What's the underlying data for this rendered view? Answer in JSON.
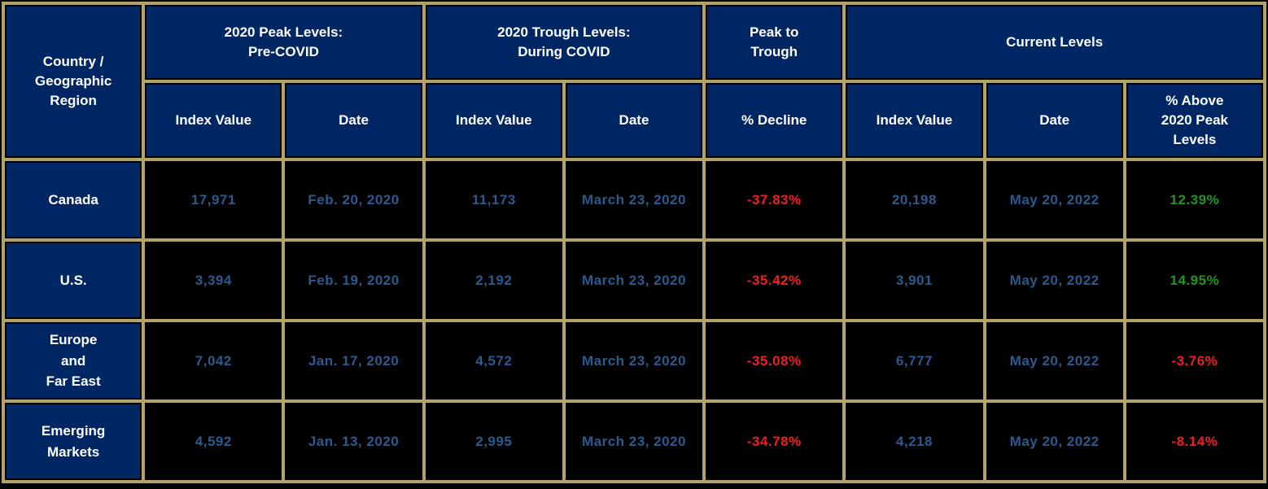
{
  "colors": {
    "header_bg": "#002664",
    "grid_border": "#B3A369",
    "data_cell_bg": "#000000",
    "header_text": "#FFFFFF",
    "value_text": "#2A5A8E",
    "negative_text": "#F01E1E",
    "positive_text": "#1E9622"
  },
  "display": {
    "corner": "Country /\nGeographic\nRegion",
    "group_peak": "2020 Peak Levels:\nPre-COVID",
    "group_trough": "2020 Trough Levels:\nDuring COVID",
    "group_peak_trough": "Peak to\nTrough",
    "group_current": "Current Levels",
    "sub_index": "Index Value",
    "sub_date": "Date",
    "sub_decline": "% Decline",
    "sub_above": "% Above\n2020 Peak\nLevels",
    "regions": [
      "Canada",
      "U.S.",
      "Europe\nand\nFar East",
      "Emerging\nMarkets"
    ]
  },
  "chart_data": {
    "type": "table",
    "column_groups": [
      {
        "label": "Country / Geographic Region",
        "colspan": 1,
        "rowspan": 2
      },
      {
        "label": "2020 Peak Levels: Pre-COVID",
        "colspan": 2
      },
      {
        "label": "2020 Trough Levels: During COVID",
        "colspan": 2
      },
      {
        "label": "Peak to Trough",
        "colspan": 1
      },
      {
        "label": "Current Levels",
        "colspan": 3
      }
    ],
    "columns": [
      "Country / Geographic Region",
      "Peak Index Value",
      "Peak Date",
      "Trough Index Value",
      "Trough Date",
      "% Decline",
      "Current Index Value",
      "Current Date",
      "% Above 2020 Peak Levels"
    ],
    "rows": [
      {
        "region": "Canada",
        "cells": [
          "17,971",
          "Feb. 20, 2020",
          "11,173",
          "March 23, 2020",
          "-37.83%",
          "20,198",
          "May 20, 2022",
          "12.39%"
        ]
      },
      {
        "region": "U.S.",
        "cells": [
          "3,394",
          "Feb. 19, 2020",
          "2,192",
          "March 23, 2020",
          "-35.42%",
          "3,901",
          "May 20, 2022",
          "14.95%"
        ]
      },
      {
        "region": "Europe and Far East",
        "cells": [
          "7,042",
          "Jan. 17, 2020",
          "4,572",
          "March 23, 2020",
          "-35.08%",
          "6,777",
          "May 20, 2022",
          "-3.76%"
        ]
      },
      {
        "region": "Emerging Markets",
        "cells": [
          "4,592",
          "Jan. 13, 2020",
          "2,995",
          "March 23, 2020",
          "-34.78%",
          "4,218",
          "May 20, 2022",
          "-8.14%"
        ]
      }
    ]
  }
}
